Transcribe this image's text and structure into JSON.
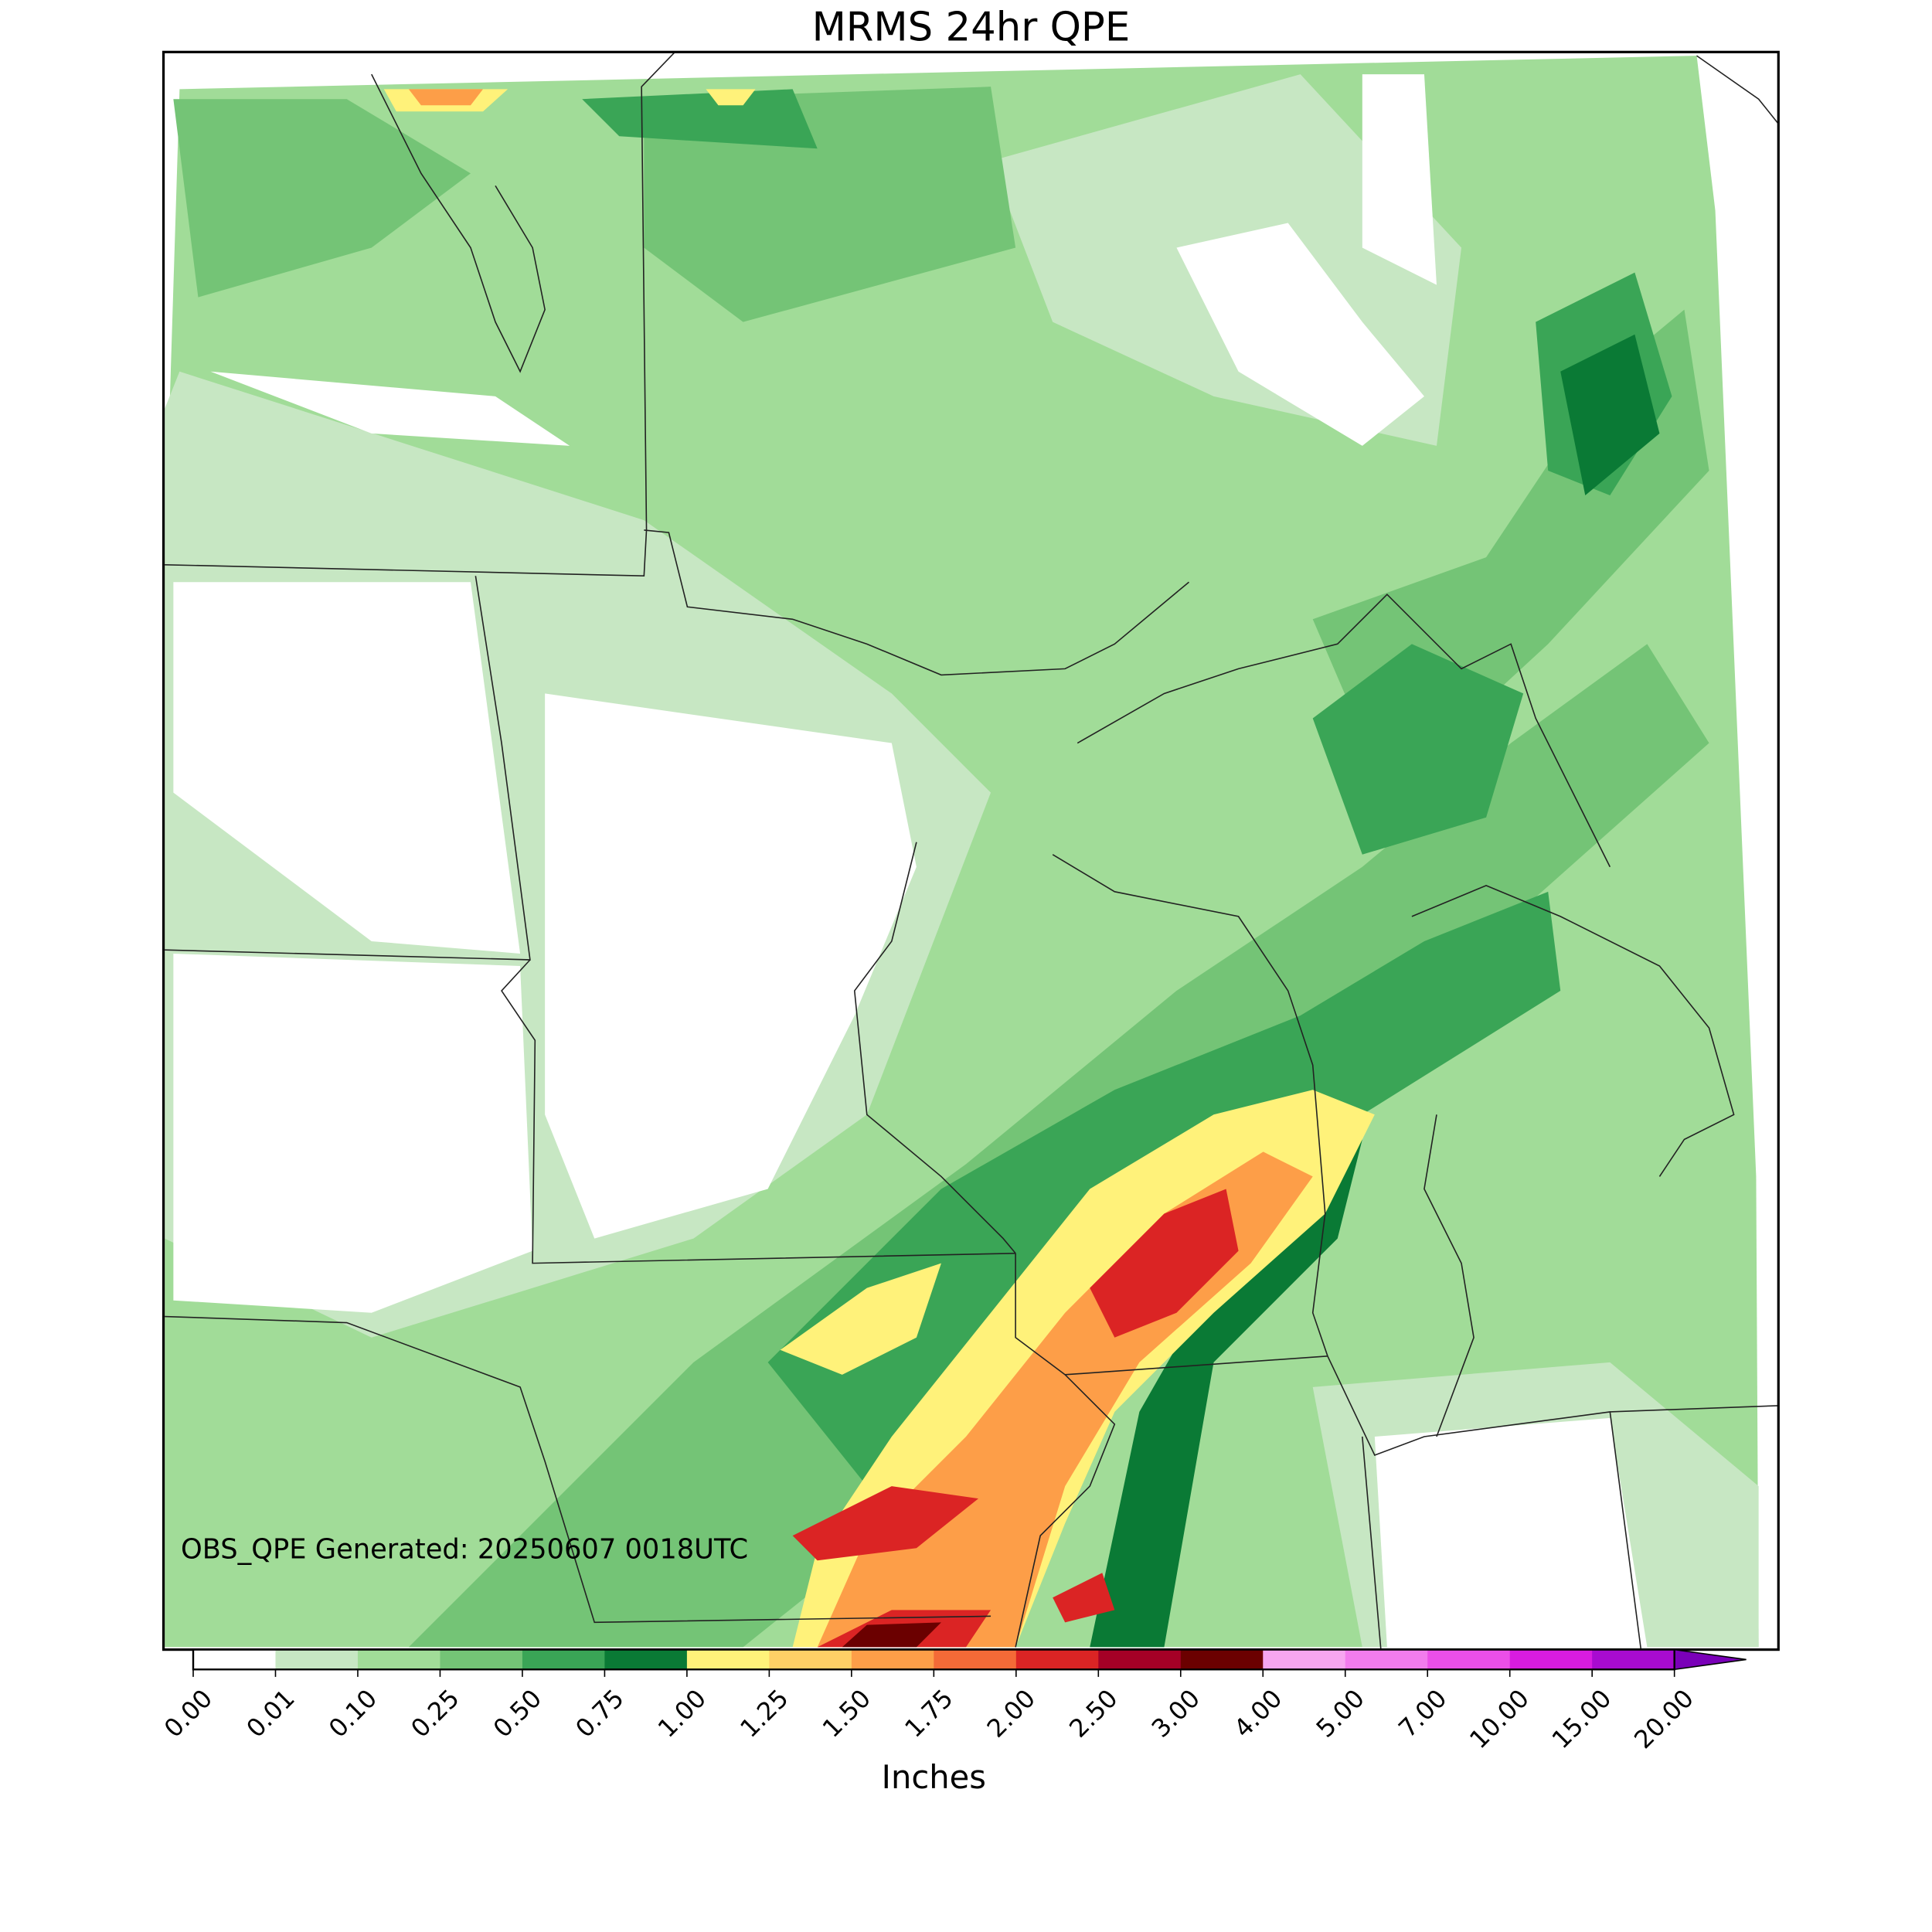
{
  "title": "MRMS 24hr QPE",
  "annotation": "OBS_QPE Generated: 20250607 0018UTC",
  "colorbar": {
    "label": "Inches",
    "ticks": [
      {
        "value": 0,
        "label": "0.00"
      },
      {
        "value": 0.01,
        "label": "0.01"
      },
      {
        "value": 0.1,
        "label": "0.10"
      },
      {
        "value": 0.25,
        "label": "0.25"
      },
      {
        "value": 0.5,
        "label": "0.50"
      },
      {
        "value": 0.75,
        "label": "0.75"
      },
      {
        "value": 1,
        "label": "1.00"
      },
      {
        "value": 1.25,
        "label": "1.25"
      },
      {
        "value": 1.5,
        "label": "1.50"
      },
      {
        "value": 1.75,
        "label": "1.75"
      },
      {
        "value": 2,
        "label": "2.00"
      },
      {
        "value": 2.5,
        "label": "2.50"
      },
      {
        "value": 3,
        "label": "3.00"
      },
      {
        "value": 4,
        "label": "4.00"
      },
      {
        "value": 5,
        "label": "5.00"
      },
      {
        "value": 7,
        "label": "7.00"
      },
      {
        "value": 10,
        "label": "10.00"
      },
      {
        "value": 15,
        "label": "15.00"
      },
      {
        "value": 20,
        "label": "20.00"
      }
    ],
    "colors": [
      "#ffffff",
      "#c7e7c3",
      "#a1dc98",
      "#74c476",
      "#3aa556",
      "#0a7a35",
      "#fff27a",
      "#fed066",
      "#fd9e48",
      "#f46a37",
      "#db2424",
      "#a50026",
      "#6b0000",
      "#f7a6f0",
      "#f27ced",
      "#eb4fe8",
      "#d81ce0",
      "#a80bd0"
    ],
    "extend_color": "#7a00b8"
  }
}
